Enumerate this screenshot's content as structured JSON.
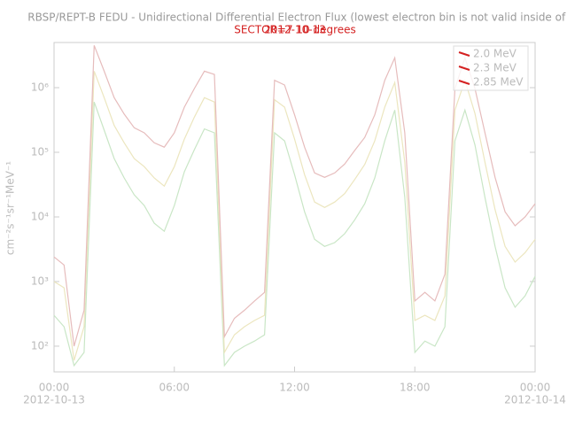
{
  "chart_data": {
    "type": "line",
    "title": "RBSP/REPT-B  FEDU - Unidirectional Differential Electron Flux (lowest electron bin is not valid inside of L=",
    "subtitle": "SECTOR=7 10 degrees",
    "date_label": "2012-10-13",
    "ylabel": "cm⁻²s⁻¹sr⁻¹MeV⁻¹",
    "log_y": true,
    "legend": "upper right",
    "x": [
      0,
      0.5,
      1,
      1.5,
      2,
      2.5,
      3,
      3.5,
      4,
      4.5,
      5,
      5.5,
      6,
      6.5,
      7,
      7.5,
      8,
      8.5,
      9,
      9.5,
      10,
      10.5,
      11,
      11.5,
      12,
      12.5,
      13,
      13.5,
      14,
      14.5,
      15,
      15.5,
      16,
      16.5,
      17,
      17.5,
      18,
      18.5,
      19,
      19.5,
      20,
      20.5,
      21,
      21.5,
      22,
      22.5,
      23,
      23.5,
      24
    ],
    "xlim": [
      0,
      24
    ],
    "xticks": [
      {
        "value": 0,
        "label": "00:00"
      },
      {
        "value": 6,
        "label": "06:00"
      },
      {
        "value": 12,
        "label": "12:00"
      },
      {
        "value": 18,
        "label": "18:00"
      },
      {
        "value": 24,
        "label": "00:00"
      }
    ],
    "xdates": [
      {
        "value": 0,
        "label": "2012-10-13"
      },
      {
        "value": 24,
        "label": "2012-10-14"
      }
    ],
    "ylim": [
      40,
      5000000
    ],
    "yticks": [
      {
        "value": 100,
        "label": "10²"
      },
      {
        "value": 1000,
        "label": "10³"
      },
      {
        "value": 10000,
        "label": "10⁴"
      },
      {
        "value": 100000,
        "label": "10⁵"
      },
      {
        "value": 1000000,
        "label": "10⁶"
      }
    ],
    "series": [
      {
        "name": "2.0 MeV",
        "color": "#e6bcbc",
        "legend_color": "#d42020",
        "values": [
          2400,
          1800,
          100,
          360,
          4500000,
          1800000,
          700000,
          390000,
          240000,
          200000,
          140000,
          120000,
          200000,
          500000,
          970000,
          1800000,
          1600000,
          140,
          270,
          360,
          500,
          680,
          1300000,
          1100000,
          380000,
          120000,
          48000,
          41000,
          48000,
          66000,
          107000,
          170000,
          380000,
          1300000,
          2900000,
          200000,
          500,
          680,
          500,
          1300,
          970000,
          2900000,
          970000,
          200000,
          41000,
          12000,
          7300,
          10000,
          16000
        ]
      },
      {
        "name": "2.3 MeV",
        "color": "#ece6bf",
        "legend_color": "#d42020",
        "values": [
          1000,
          800,
          60,
          200,
          1800000,
          700000,
          260000,
          140000,
          80000,
          60000,
          40000,
          30000,
          60000,
          160000,
          350000,
          700000,
          600000,
          80,
          150,
          200,
          250,
          300,
          650000,
          500000,
          160000,
          45000,
          17000,
          14000,
          17000,
          23000,
          38000,
          65000,
          150000,
          500000,
          1200000,
          70000,
          250,
          300,
          250,
          600,
          450000,
          1300000,
          400000,
          70000,
          13000,
          3500,
          2000,
          2800,
          4500
        ]
      },
      {
        "name": "2.85 MeV",
        "color": "#c9e6c6",
        "legend_color": "#d42020",
        "values": [
          300,
          200,
          50,
          80,
          600000,
          220000,
          80000,
          40000,
          22000,
          15000,
          8000,
          6000,
          15000,
          50000,
          110000,
          230000,
          200000,
          50,
          80,
          100,
          120,
          150,
          200000,
          150000,
          45000,
          12000,
          4500,
          3500,
          4000,
          5500,
          9000,
          16000,
          40000,
          150000,
          450000,
          20000,
          80,
          120,
          100,
          200,
          150000,
          450000,
          130000,
          20000,
          3500,
          800,
          400,
          600,
          1200
        ]
      }
    ]
  }
}
